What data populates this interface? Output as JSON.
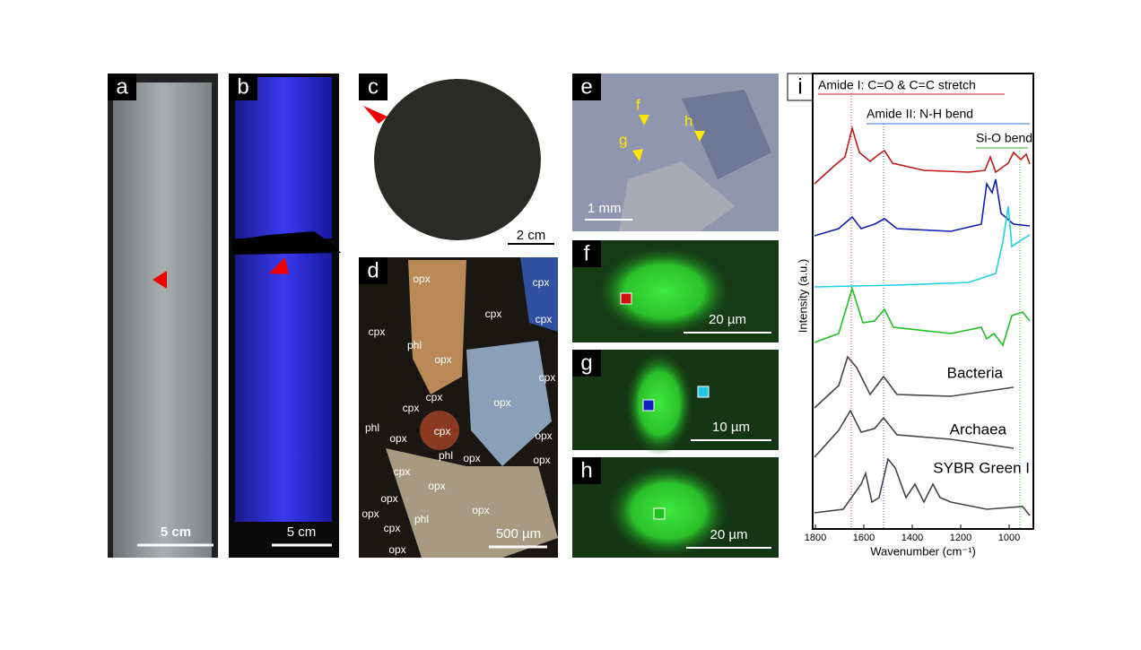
{
  "panels": {
    "a": {
      "label": "a",
      "scale_bar": "5 cm"
    },
    "b": {
      "label": "b",
      "scale_bar": "5 cm"
    },
    "c": {
      "label": "c",
      "scale_bar": "2 cm"
    },
    "d": {
      "label": "d",
      "scale_bar": "500 µm",
      "minerals": [
        "opx",
        "cpx",
        "cpx",
        "cpx",
        "cpx",
        "phl",
        "opx",
        "cpx",
        "cpx",
        "cpx",
        "opx",
        "phl",
        "cpx",
        "opx",
        "opx",
        "phl",
        "opx",
        "opx",
        "cpx",
        "opx",
        "opx",
        "opx",
        "opx",
        "cpx",
        "phl",
        "opx"
      ]
    },
    "e": {
      "label": "e",
      "scale_bar": "1 mm",
      "markers": [
        "f",
        "g",
        "h"
      ]
    },
    "f": {
      "label": "f",
      "scale_bar": "20 µm"
    },
    "g": {
      "label": "g",
      "scale_bar": "10 µm"
    },
    "h": {
      "label": "h",
      "scale_bar": "20 µm"
    },
    "i": {
      "label": "i",
      "annotations": [
        "Amide I: C=O & C=C stretch",
        "Amide II: N-H bend",
        "Si-O bend"
      ],
      "spectra_labels": [
        "Bacteria",
        "Archaea",
        "SYBR Green I"
      ],
      "x_label": "Wavenumber (cm⁻¹)",
      "y_label": "Intensity (a.u.)",
      "xlim": [
        1820,
        960
      ],
      "xticks": [
        1800,
        1600,
        1400,
        1200,
        1000
      ]
    }
  }
}
